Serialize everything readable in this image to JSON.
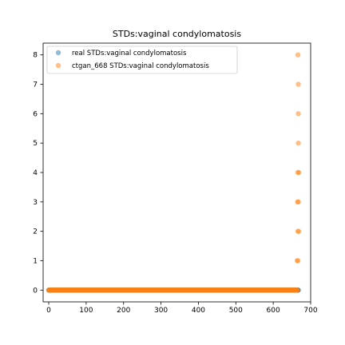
{
  "chart_data": {
    "type": "scatter",
    "title": "STDs:vaginal condylomatosis",
    "xlabel": "",
    "ylabel": "",
    "xlim": [
      -15,
      700
    ],
    "ylim": [
      -0.4,
      8.4
    ],
    "x_ticks": [
      0,
      100,
      200,
      300,
      400,
      500,
      600,
      700
    ],
    "y_ticks": [
      0,
      1,
      2,
      3,
      4,
      5,
      6,
      7,
      8
    ],
    "grid": false,
    "legend_position": "top-left",
    "series": [
      {
        "name": "real STDs:vaginal condylomatosis",
        "color": "#1f77b4",
        "alpha": 0.5,
        "row_zero_count": 668,
        "extra_points": [
          [
            666,
            0
          ]
        ]
      },
      {
        "name": "ctgan_668 STDs:vaginal condylomatosis",
        "color": "#ff7f0e",
        "alpha": 0.5,
        "row_zero_count": 666,
        "extra_points": [
          [
            666,
            8
          ],
          [
            667,
            7
          ],
          [
            667,
            6
          ],
          [
            667,
            5
          ],
          [
            668,
            4
          ],
          [
            666,
            4
          ],
          [
            667,
            3
          ],
          [
            665,
            3
          ],
          [
            668,
            2
          ],
          [
            666,
            2
          ],
          [
            666,
            1
          ],
          [
            664,
            1
          ]
        ]
      }
    ]
  }
}
